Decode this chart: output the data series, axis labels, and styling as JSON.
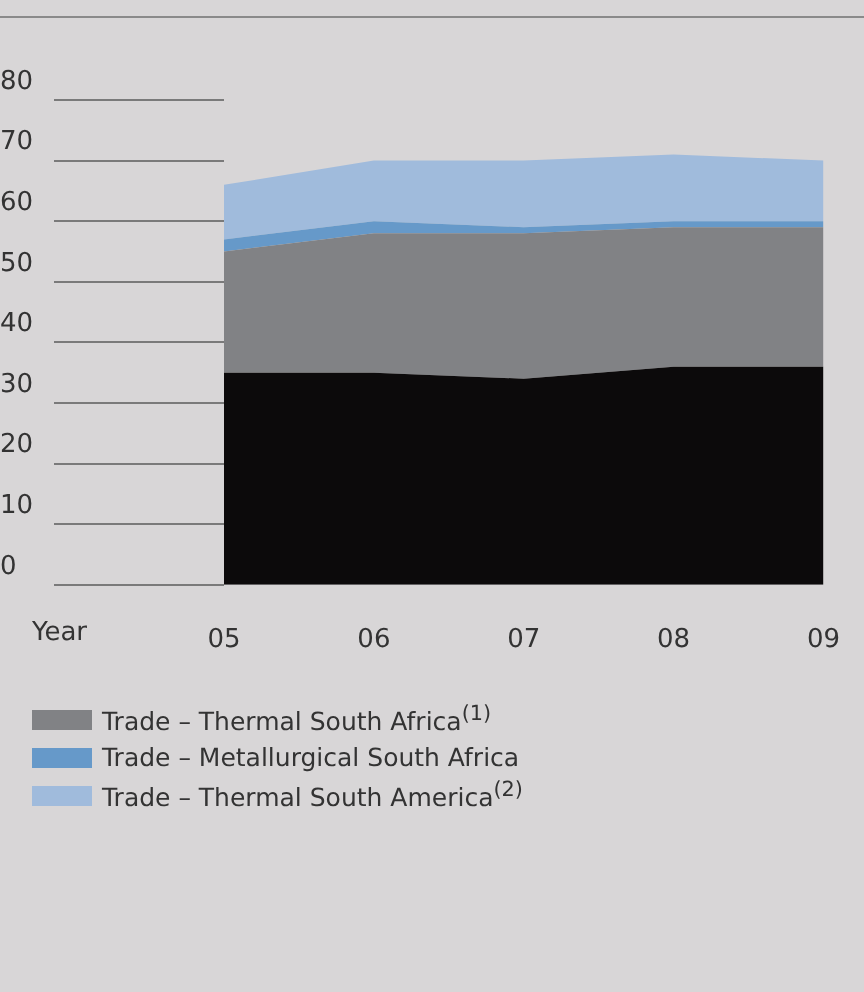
{
  "chart_data": {
    "type": "area",
    "stacked": true,
    "xlabel": "Year",
    "categories": [
      "05",
      "06",
      "07",
      "08",
      "09"
    ],
    "series": [
      {
        "color": "#0c0a0b",
        "values": [
          35,
          35,
          34,
          36,
          36
        ]
      },
      {
        "name": "Trade – Thermal South Africa$^{(1)}$",
        "color": "#818285",
        "values": [
          20,
          23,
          24,
          23,
          23
        ]
      },
      {
        "name": "Trade – Metallurgical South Africa",
        "color": "#6699c9",
        "values": [
          2,
          2,
          1,
          1,
          1
        ]
      },
      {
        "name": "Trade – Thermal South America$^{(2)}$",
        "color": "#a0bbdc",
        "values": [
          9,
          10,
          11,
          11,
          10
        ]
      }
    ],
    "ylim": [
      0,
      80
    ],
    "yticks": [
      0,
      10,
      20,
      30,
      40,
      50,
      60,
      70,
      80
    ],
    "legend": "bottom"
  }
}
